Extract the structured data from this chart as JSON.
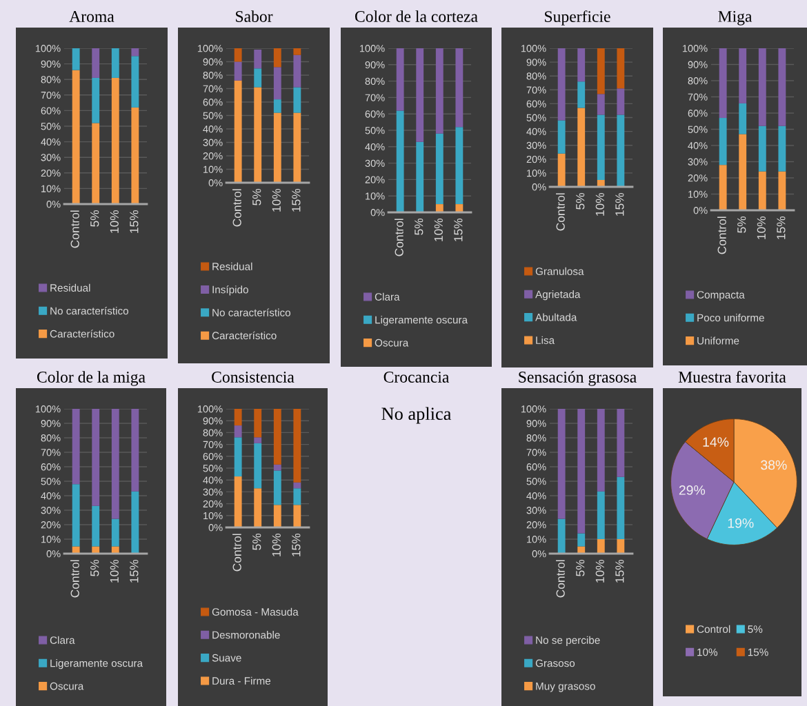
{
  "chart_data": [
    {
      "type": "bar",
      "title": "Aroma",
      "stacked": true,
      "legend": "bottom",
      "grid": "y",
      "categories": [
        "Control",
        "5%",
        "10%",
        "15%"
      ],
      "ylim": [
        0,
        100
      ],
      "yticks": [
        {
          "value": 0,
          "label": "0%"
        },
        {
          "value": 10,
          "label": "10%"
        },
        {
          "value": 20,
          "label": "20%"
        },
        {
          "value": 30,
          "label": "30%"
        },
        {
          "value": 40,
          "label": "40%"
        },
        {
          "value": 50,
          "label": "50%"
        },
        {
          "value": 60,
          "label": "60%"
        },
        {
          "value": 70,
          "label": "70%"
        },
        {
          "value": 80,
          "label": "80%"
        },
        {
          "value": 90,
          "label": "90%"
        },
        {
          "value": 100,
          "label": "100%"
        }
      ],
      "series": [
        {
          "name": "Característico",
          "color": "#f59a45",
          "values": [
            86,
            52,
            81,
            62
          ]
        },
        {
          "name": "No característico",
          "color": "#3aa8c4",
          "values": [
            14,
            29,
            19,
            33
          ]
        },
        {
          "name": "Residual",
          "color": "#7f5fa5",
          "values": [
            0,
            19,
            0,
            5
          ]
        }
      ]
    },
    {
      "type": "bar",
      "title": "Sabor",
      "stacked": true,
      "legend": "bottom",
      "grid": "y",
      "categories": [
        "Control",
        "5%",
        "10%",
        "15%"
      ],
      "ylim": [
        0,
        100
      ],
      "yticks": [
        {
          "value": 0,
          "label": "0%"
        },
        {
          "value": 10,
          "label": "10%"
        },
        {
          "value": 20,
          "label": "20%"
        },
        {
          "value": 30,
          "label": "30%"
        },
        {
          "value": 40,
          "label": "40%"
        },
        {
          "value": 50,
          "label": "50%"
        },
        {
          "value": 60,
          "label": "60%"
        },
        {
          "value": 70,
          "label": "70%"
        },
        {
          "value": 80,
          "label": "80%"
        },
        {
          "value": 90,
          "label": "90%"
        },
        {
          "value": 100,
          "label": "100%"
        }
      ],
      "series": [
        {
          "name": "Característico",
          "color": "#f59a45",
          "values": [
            76,
            71,
            52,
            52
          ]
        },
        {
          "name": "No característico",
          "color": "#3aa8c4",
          "values": [
            0,
            14,
            10,
            19
          ]
        },
        {
          "name": "Insípido",
          "color": "#7f5fa5",
          "values": [
            14,
            14,
            24,
            24
          ]
        },
        {
          "name": "Residual",
          "color": "#c55a11",
          "values": [
            10,
            0,
            14,
            5
          ]
        }
      ]
    },
    {
      "type": "bar",
      "title": "Color de la corteza",
      "stacked": true,
      "legend": "bottom",
      "grid": "y",
      "categories": [
        "Control",
        "5%",
        "10%",
        "15%"
      ],
      "ylim": [
        0,
        100
      ],
      "yticks": [
        {
          "value": 0,
          "label": "0%"
        },
        {
          "value": 10,
          "label": "10%"
        },
        {
          "value": 20,
          "label": "20%"
        },
        {
          "value": 30,
          "label": "30%"
        },
        {
          "value": 40,
          "label": "40%"
        },
        {
          "value": 50,
          "label": "50%"
        },
        {
          "value": 60,
          "label": "60%"
        },
        {
          "value": 70,
          "label": "70%"
        },
        {
          "value": 80,
          "label": "80%"
        },
        {
          "value": 90,
          "label": "90%"
        },
        {
          "value": 100,
          "label": "100%"
        }
      ],
      "series": [
        {
          "name": "Oscura",
          "color": "#f59a45",
          "values": [
            0,
            0,
            5,
            5
          ]
        },
        {
          "name": "Ligeramente oscura",
          "color": "#3aa8c4",
          "values": [
            62,
            43,
            43,
            47
          ]
        },
        {
          "name": "Clara",
          "color": "#7f5fa5",
          "values": [
            38,
            57,
            52,
            48
          ]
        }
      ]
    },
    {
      "type": "bar",
      "title": "Superficie",
      "stacked": true,
      "legend": "bottom",
      "grid": "y",
      "categories": [
        "Control",
        "5%",
        "10%",
        "15%"
      ],
      "ylim": [
        0,
        100
      ],
      "yticks": [
        {
          "value": 0,
          "label": "0%"
        },
        {
          "value": 10,
          "label": "10%"
        },
        {
          "value": 20,
          "label": "20%"
        },
        {
          "value": 30,
          "label": "30%"
        },
        {
          "value": 40,
          "label": "40%"
        },
        {
          "value": 50,
          "label": "50%"
        },
        {
          "value": 60,
          "label": "60%"
        },
        {
          "value": 70,
          "label": "70%"
        },
        {
          "value": 80,
          "label": "80%"
        },
        {
          "value": 90,
          "label": "90%"
        },
        {
          "value": 100,
          "label": "100%"
        }
      ],
      "series": [
        {
          "name": "Lisa",
          "color": "#f59a45",
          "values": [
            24,
            57,
            5,
            0
          ]
        },
        {
          "name": "Abultada",
          "color": "#3aa8c4",
          "values": [
            24,
            19,
            47,
            52
          ]
        },
        {
          "name": "Agrietada",
          "color": "#7f5fa5",
          "values": [
            52,
            24,
            15,
            19
          ]
        },
        {
          "name": "Granulosa",
          "color": "#c55a11",
          "values": [
            0,
            0,
            33,
            29
          ]
        }
      ]
    },
    {
      "type": "bar",
      "title": "Miga",
      "stacked": true,
      "legend": "bottom",
      "grid": "y",
      "categories": [
        "Control",
        "5%",
        "10%",
        "15%"
      ],
      "ylim": [
        0,
        100
      ],
      "yticks": [
        {
          "value": 0,
          "label": "0%"
        },
        {
          "value": 10,
          "label": "10%"
        },
        {
          "value": 20,
          "label": "20%"
        },
        {
          "value": 30,
          "label": "30%"
        },
        {
          "value": 40,
          "label": "40%"
        },
        {
          "value": 50,
          "label": "50%"
        },
        {
          "value": 60,
          "label": "60%"
        },
        {
          "value": 70,
          "label": "70%"
        },
        {
          "value": 80,
          "label": "80%"
        },
        {
          "value": 90,
          "label": "90%"
        },
        {
          "value": 100,
          "label": "100%"
        }
      ],
      "series": [
        {
          "name": "Uniforme",
          "color": "#f59a45",
          "values": [
            28,
            47,
            24,
            24
          ]
        },
        {
          "name": "Poco uniforme",
          "color": "#3aa8c4",
          "values": [
            29,
            19,
            28,
            28
          ]
        },
        {
          "name": "Compacta",
          "color": "#7f5fa5",
          "values": [
            43,
            34,
            48,
            48
          ]
        }
      ]
    },
    {
      "type": "bar",
      "title": "Color de la miga",
      "stacked": true,
      "legend": "bottom",
      "grid": "y",
      "categories": [
        "Control",
        "5%",
        "10%",
        "15%"
      ],
      "ylim": [
        0,
        100
      ],
      "yticks": [
        {
          "value": 0,
          "label": "0%"
        },
        {
          "value": 10,
          "label": "10%"
        },
        {
          "value": 20,
          "label": "20%"
        },
        {
          "value": 30,
          "label": "30%"
        },
        {
          "value": 40,
          "label": "40%"
        },
        {
          "value": 50,
          "label": "50%"
        },
        {
          "value": 60,
          "label": "60%"
        },
        {
          "value": 70,
          "label": "70%"
        },
        {
          "value": 80,
          "label": "80%"
        },
        {
          "value": 90,
          "label": "90%"
        },
        {
          "value": 100,
          "label": "100%"
        }
      ],
      "series": [
        {
          "name": "Oscura",
          "color": "#f59a45",
          "values": [
            5,
            5,
            5,
            0
          ]
        },
        {
          "name": "Ligeramente oscura",
          "color": "#3aa8c4",
          "values": [
            43,
            28,
            19,
            43
          ]
        },
        {
          "name": "Clara",
          "color": "#7f5fa5",
          "values": [
            52,
            67,
            76,
            57
          ]
        }
      ]
    },
    {
      "type": "bar",
      "title": "Consistencia",
      "stacked": true,
      "legend": "bottom",
      "grid": "y",
      "categories": [
        "Control",
        "5%",
        "10%",
        "15%"
      ],
      "ylim": [
        0,
        100
      ],
      "yticks": [
        {
          "value": 0,
          "label": "0%"
        },
        {
          "value": 10,
          "label": "10%"
        },
        {
          "value": 20,
          "label": "20%"
        },
        {
          "value": 30,
          "label": "30%"
        },
        {
          "value": 40,
          "label": "40%"
        },
        {
          "value": 50,
          "label": "50%"
        },
        {
          "value": 60,
          "label": "60%"
        },
        {
          "value": 70,
          "label": "70%"
        },
        {
          "value": 80,
          "label": "80%"
        },
        {
          "value": 90,
          "label": "90%"
        },
        {
          "value": 100,
          "label": "100%"
        }
      ],
      "series": [
        {
          "name": "Dura - Firme",
          "color": "#f59a45",
          "values": [
            43,
            33,
            19,
            19
          ]
        },
        {
          "name": "Suave",
          "color": "#3aa8c4",
          "values": [
            33,
            38,
            29,
            14
          ]
        },
        {
          "name": "Desmoronable",
          "color": "#7f5fa5",
          "values": [
            10,
            5,
            5,
            5
          ]
        },
        {
          "name": "Gomosa - Masuda",
          "color": "#c55a11",
          "values": [
            14,
            24,
            47,
            62
          ]
        }
      ]
    },
    {
      "type": "other",
      "title": "Crocancia",
      "annotations": [
        "No aplica"
      ]
    },
    {
      "type": "bar",
      "title": "Sensación grasosa",
      "stacked": true,
      "legend": "bottom",
      "grid": "y",
      "categories": [
        "Control",
        "5%",
        "10%",
        "15%"
      ],
      "ylim": [
        0,
        100
      ],
      "yticks": [
        {
          "value": 0,
          "label": "0%"
        },
        {
          "value": 10,
          "label": "10%"
        },
        {
          "value": 20,
          "label": "20%"
        },
        {
          "value": 30,
          "label": "30%"
        },
        {
          "value": 40,
          "label": "40%"
        },
        {
          "value": 50,
          "label": "50%"
        },
        {
          "value": 60,
          "label": "60%"
        },
        {
          "value": 70,
          "label": "70%"
        },
        {
          "value": 80,
          "label": "80%"
        },
        {
          "value": 90,
          "label": "90%"
        },
        {
          "value": 100,
          "label": "100%"
        }
      ],
      "series": [
        {
          "name": "Muy grasoso",
          "color": "#f59a45",
          "values": [
            0,
            5,
            10,
            10
          ]
        },
        {
          "name": "Grasoso",
          "color": "#3aa8c4",
          "values": [
            24,
            9,
            33,
            43
          ]
        },
        {
          "name": "No se percibe",
          "color": "#7f5fa5",
          "values": [
            76,
            86,
            57,
            47
          ]
        }
      ]
    },
    {
      "type": "pie",
      "title": "Muestra favorita",
      "legend": "bottom",
      "categories": [
        "Control",
        "5%",
        "10%",
        "15%"
      ],
      "values": [
        38,
        19,
        29,
        14
      ],
      "colors": [
        "#f9a04a",
        "#4bc3dd",
        "#8c6bb1",
        "#c85e14"
      ],
      "value_labels": [
        "38%",
        "19%",
        "29%",
        "14%"
      ]
    }
  ]
}
